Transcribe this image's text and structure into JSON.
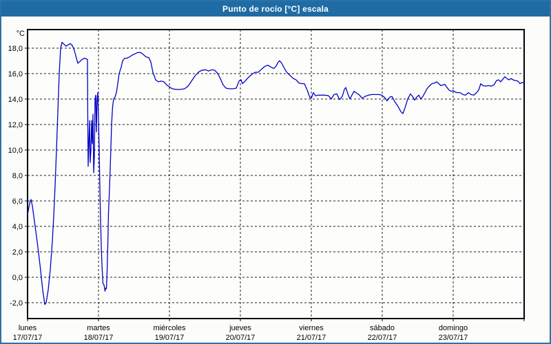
{
  "window": {
    "title": "Punto de rocío [°C] escala"
  },
  "colors": {
    "titlebar": "#1f6ba3",
    "window_border": "#2a72a8",
    "content_background": "#fcfdfa",
    "plot_background": "#fdfdfb",
    "grid": "#1a1a1a",
    "axis": "#000000",
    "text": "#000000",
    "line": "#0000c8"
  },
  "chart_data": {
    "type": "line",
    "title": "Punto de rocío [°C] escala",
    "ylabel": "°C",
    "unit_label": "°C",
    "grid": "dashed",
    "legend_position": "none",
    "ylim": [
      -3.25,
      19.45
    ],
    "y_ticks": [
      -2,
      0,
      2,
      4,
      6,
      8,
      10,
      12,
      14,
      16,
      18
    ],
    "y_tick_labels": [
      "-2,0",
      "0,0",
      "2,0",
      "4,0",
      "6,0",
      "8,0",
      "10,0",
      "12,0",
      "14,0",
      "16,0",
      "18,0"
    ],
    "xlim_days": [
      0,
      7
    ],
    "x_days": [
      {
        "name": "lunes",
        "date": "17/07/17"
      },
      {
        "name": "martes",
        "date": "18/07/17"
      },
      {
        "name": "miércoles",
        "date": "19/07/17"
      },
      {
        "name": "jueves",
        "date": "20/07/17"
      },
      {
        "name": "viernes",
        "date": "21/07/17"
      },
      {
        "name": "sábado",
        "date": "22/07/17"
      },
      {
        "name": "domingo",
        "date": "23/07/17"
      }
    ],
    "series": [
      {
        "name": "Punto de rocío [°C]",
        "color": "#0000c8",
        "points": [
          [
            0,
            4.9
          ],
          [
            0.029,
            5.8
          ],
          [
            0.049,
            6.1
          ],
          [
            0.068,
            5.6
          ],
          [
            0.097,
            4.4
          ],
          [
            0.136,
            2.8
          ],
          [
            0.175,
            1
          ],
          [
            0.214,
            -1
          ],
          [
            0.243,
            -2.15
          ],
          [
            0.262,
            -2
          ],
          [
            0.291,
            -1
          ],
          [
            0.32,
            0.6
          ],
          [
            0.35,
            2.8
          ],
          [
            0.369,
            4.8
          ],
          [
            0.388,
            7.2
          ],
          [
            0.408,
            10
          ],
          [
            0.427,
            13
          ],
          [
            0.447,
            16
          ],
          [
            0.466,
            18
          ],
          [
            0.485,
            18.45
          ],
          [
            0.515,
            18.3
          ],
          [
            0.544,
            18.15
          ],
          [
            0.573,
            18.25
          ],
          [
            0.602,
            18.35
          ],
          [
            0.631,
            18.2
          ],
          [
            0.66,
            17.8
          ],
          [
            0.689,
            17.2
          ],
          [
            0.709,
            16.8
          ],
          [
            0.738,
            16.95
          ],
          [
            0.767,
            17.1
          ],
          [
            0.806,
            17.2
          ],
          [
            0.845,
            17.1
          ],
          [
            0.85,
            12
          ],
          [
            0.854,
            8.7
          ],
          [
            0.864,
            10.5
          ],
          [
            0.874,
            12.3
          ],
          [
            0.883,
            9
          ],
          [
            0.893,
            10
          ],
          [
            0.903,
            12.3
          ],
          [
            0.913,
            10.5
          ],
          [
            0.922,
            12.8
          ],
          [
            0.932,
            8.2
          ],
          [
            0.942,
            9.5
          ],
          [
            0.951,
            14
          ],
          [
            0.961,
            14.3
          ],
          [
            0.971,
            11.4
          ],
          [
            0.981,
            14
          ],
          [
            0.99,
            14.5
          ],
          [
            1,
            12.5
          ],
          [
            1.01,
            10
          ],
          [
            1.019,
            7
          ],
          [
            1.029,
            4.5
          ],
          [
            1.039,
            2.5
          ],
          [
            1.049,
            1
          ],
          [
            1.063,
            -0.5
          ],
          [
            1.078,
            -0.6
          ],
          [
            1.092,
            -1.1
          ],
          [
            1.102,
            -0.85
          ],
          [
            1.112,
            -0.9
          ],
          [
            1.121,
            0.5
          ],
          [
            1.131,
            2.5
          ],
          [
            1.141,
            5
          ],
          [
            1.155,
            7
          ],
          [
            1.165,
            8.5
          ],
          [
            1.175,
            10.2
          ],
          [
            1.184,
            12
          ],
          [
            1.199,
            13.4
          ],
          [
            1.214,
            14
          ],
          [
            1.233,
            14.15
          ],
          [
            1.252,
            14.5
          ],
          [
            1.272,
            15.2
          ],
          [
            1.291,
            16
          ],
          [
            1.32,
            16.5
          ],
          [
            1.34,
            17
          ],
          [
            1.369,
            17.2
          ],
          [
            1.398,
            17.2
          ],
          [
            1.437,
            17.3
          ],
          [
            1.476,
            17.45
          ],
          [
            1.515,
            17.55
          ],
          [
            1.553,
            17.65
          ],
          [
            1.592,
            17.65
          ],
          [
            1.631,
            17.5
          ],
          [
            1.67,
            17.3
          ],
          [
            1.709,
            17.25
          ],
          [
            1.738,
            16.9
          ],
          [
            1.767,
            16.1
          ],
          [
            1.806,
            15.5
          ],
          [
            1.845,
            15.35
          ],
          [
            1.883,
            15.4
          ],
          [
            1.922,
            15.35
          ],
          [
            1.961,
            15.1
          ],
          [
            2,
            14.95
          ],
          [
            2.039,
            14.8
          ],
          [
            2.097,
            14.75
          ],
          [
            2.155,
            14.75
          ],
          [
            2.214,
            14.8
          ],
          [
            2.262,
            15
          ],
          [
            2.311,
            15.4
          ],
          [
            2.359,
            15.8
          ],
          [
            2.408,
            16.1
          ],
          [
            2.456,
            16.25
          ],
          [
            2.505,
            16.3
          ],
          [
            2.553,
            16.2
          ],
          [
            2.602,
            16.3
          ],
          [
            2.641,
            16.25
          ],
          [
            2.68,
            16
          ],
          [
            2.718,
            15.6
          ],
          [
            2.757,
            15.1
          ],
          [
            2.796,
            14.85
          ],
          [
            2.845,
            14.8
          ],
          [
            2.893,
            14.8
          ],
          [
            2.942,
            14.85
          ],
          [
            2.981,
            15.4
          ],
          [
            3.01,
            15.5
          ],
          [
            3.029,
            15.2
          ],
          [
            3.058,
            15.35
          ],
          [
            3.097,
            15.6
          ],
          [
            3.136,
            15.8
          ],
          [
            3.175,
            16
          ],
          [
            3.214,
            16.1
          ],
          [
            3.252,
            16.1
          ],
          [
            3.291,
            16.3
          ],
          [
            3.33,
            16.5
          ],
          [
            3.359,
            16.6
          ],
          [
            3.388,
            16.65
          ],
          [
            3.417,
            16.55
          ],
          [
            3.447,
            16.45
          ],
          [
            3.476,
            16.4
          ],
          [
            3.505,
            16.6
          ],
          [
            3.534,
            16.9
          ],
          [
            3.553,
            17
          ],
          [
            3.583,
            16.8
          ],
          [
            3.612,
            16.5
          ],
          [
            3.641,
            16.2
          ],
          [
            3.67,
            16
          ],
          [
            3.709,
            15.8
          ],
          [
            3.748,
            15.6
          ],
          [
            3.786,
            15.5
          ],
          [
            3.825,
            15.25
          ],
          [
            3.864,
            15.2
          ],
          [
            3.903,
            15.2
          ],
          [
            3.942,
            14.7
          ],
          [
            3.981,
            14.1
          ],
          [
            4,
            14.05
          ],
          [
            4.029,
            14.5
          ],
          [
            4.058,
            14.25
          ],
          [
            4.097,
            14.3
          ],
          [
            4.146,
            14.3
          ],
          [
            4.194,
            14.3
          ],
          [
            4.243,
            14.25
          ],
          [
            4.282,
            14
          ],
          [
            4.32,
            14.35
          ],
          [
            4.359,
            14.4
          ],
          [
            4.398,
            13.95
          ],
          [
            4.437,
            14.2
          ],
          [
            4.466,
            14.75
          ],
          [
            4.485,
            14.9
          ],
          [
            4.515,
            14.4
          ],
          [
            4.544,
            14
          ],
          [
            4.573,
            14.3
          ],
          [
            4.602,
            14.6
          ],
          [
            4.641,
            14.45
          ],
          [
            4.68,
            14.3
          ],
          [
            4.718,
            14.05
          ],
          [
            4.757,
            14.2
          ],
          [
            4.806,
            14.3
          ],
          [
            4.854,
            14.35
          ],
          [
            4.903,
            14.35
          ],
          [
            4.951,
            14.35
          ],
          [
            4.99,
            14.3
          ],
          [
            5.029,
            14.15
          ],
          [
            5.068,
            13.85
          ],
          [
            5.107,
            14.15
          ],
          [
            5.136,
            14.2
          ],
          [
            5.175,
            13.8
          ],
          [
            5.223,
            13.4
          ],
          [
            5.262,
            13
          ],
          [
            5.291,
            12.85
          ],
          [
            5.32,
            13.3
          ],
          [
            5.359,
            14
          ],
          [
            5.398,
            14.4
          ],
          [
            5.427,
            14.2
          ],
          [
            5.456,
            13.9
          ],
          [
            5.485,
            14.15
          ],
          [
            5.515,
            14.3
          ],
          [
            5.544,
            14
          ],
          [
            5.573,
            14.2
          ],
          [
            5.602,
            14.5
          ],
          [
            5.631,
            14.8
          ],
          [
            5.66,
            15
          ],
          [
            5.699,
            15.2
          ],
          [
            5.738,
            15.25
          ],
          [
            5.767,
            15.35
          ],
          [
            5.796,
            15.2
          ],
          [
            5.825,
            15.05
          ],
          [
            5.854,
            15.1
          ],
          [
            5.883,
            15.15
          ],
          [
            5.913,
            14.9
          ],
          [
            5.942,
            14.7
          ],
          [
            5.971,
            14.6
          ],
          [
            6,
            14.65
          ],
          [
            6.029,
            14.55
          ],
          [
            6.058,
            14.5
          ],
          [
            6.097,
            14.5
          ],
          [
            6.136,
            14.35
          ],
          [
            6.175,
            14.3
          ],
          [
            6.214,
            14.5
          ],
          [
            6.252,
            14.35
          ],
          [
            6.291,
            14.3
          ],
          [
            6.33,
            14.5
          ],
          [
            6.359,
            14.7
          ],
          [
            6.388,
            15.2
          ],
          [
            6.417,
            15.05
          ],
          [
            6.456,
            15
          ],
          [
            6.495,
            15.05
          ],
          [
            6.534,
            15
          ],
          [
            6.573,
            15.1
          ],
          [
            6.612,
            15.45
          ],
          [
            6.641,
            15.5
          ],
          [
            6.67,
            15.35
          ],
          [
            6.699,
            15.55
          ],
          [
            6.728,
            15.75
          ],
          [
            6.757,
            15.6
          ],
          [
            6.786,
            15.5
          ],
          [
            6.816,
            15.6
          ],
          [
            6.845,
            15.5
          ],
          [
            6.874,
            15.45
          ],
          [
            6.913,
            15.4
          ],
          [
            6.942,
            15.2
          ],
          [
            6.971,
            15.3
          ],
          [
            7,
            15.25
          ]
        ]
      }
    ]
  }
}
